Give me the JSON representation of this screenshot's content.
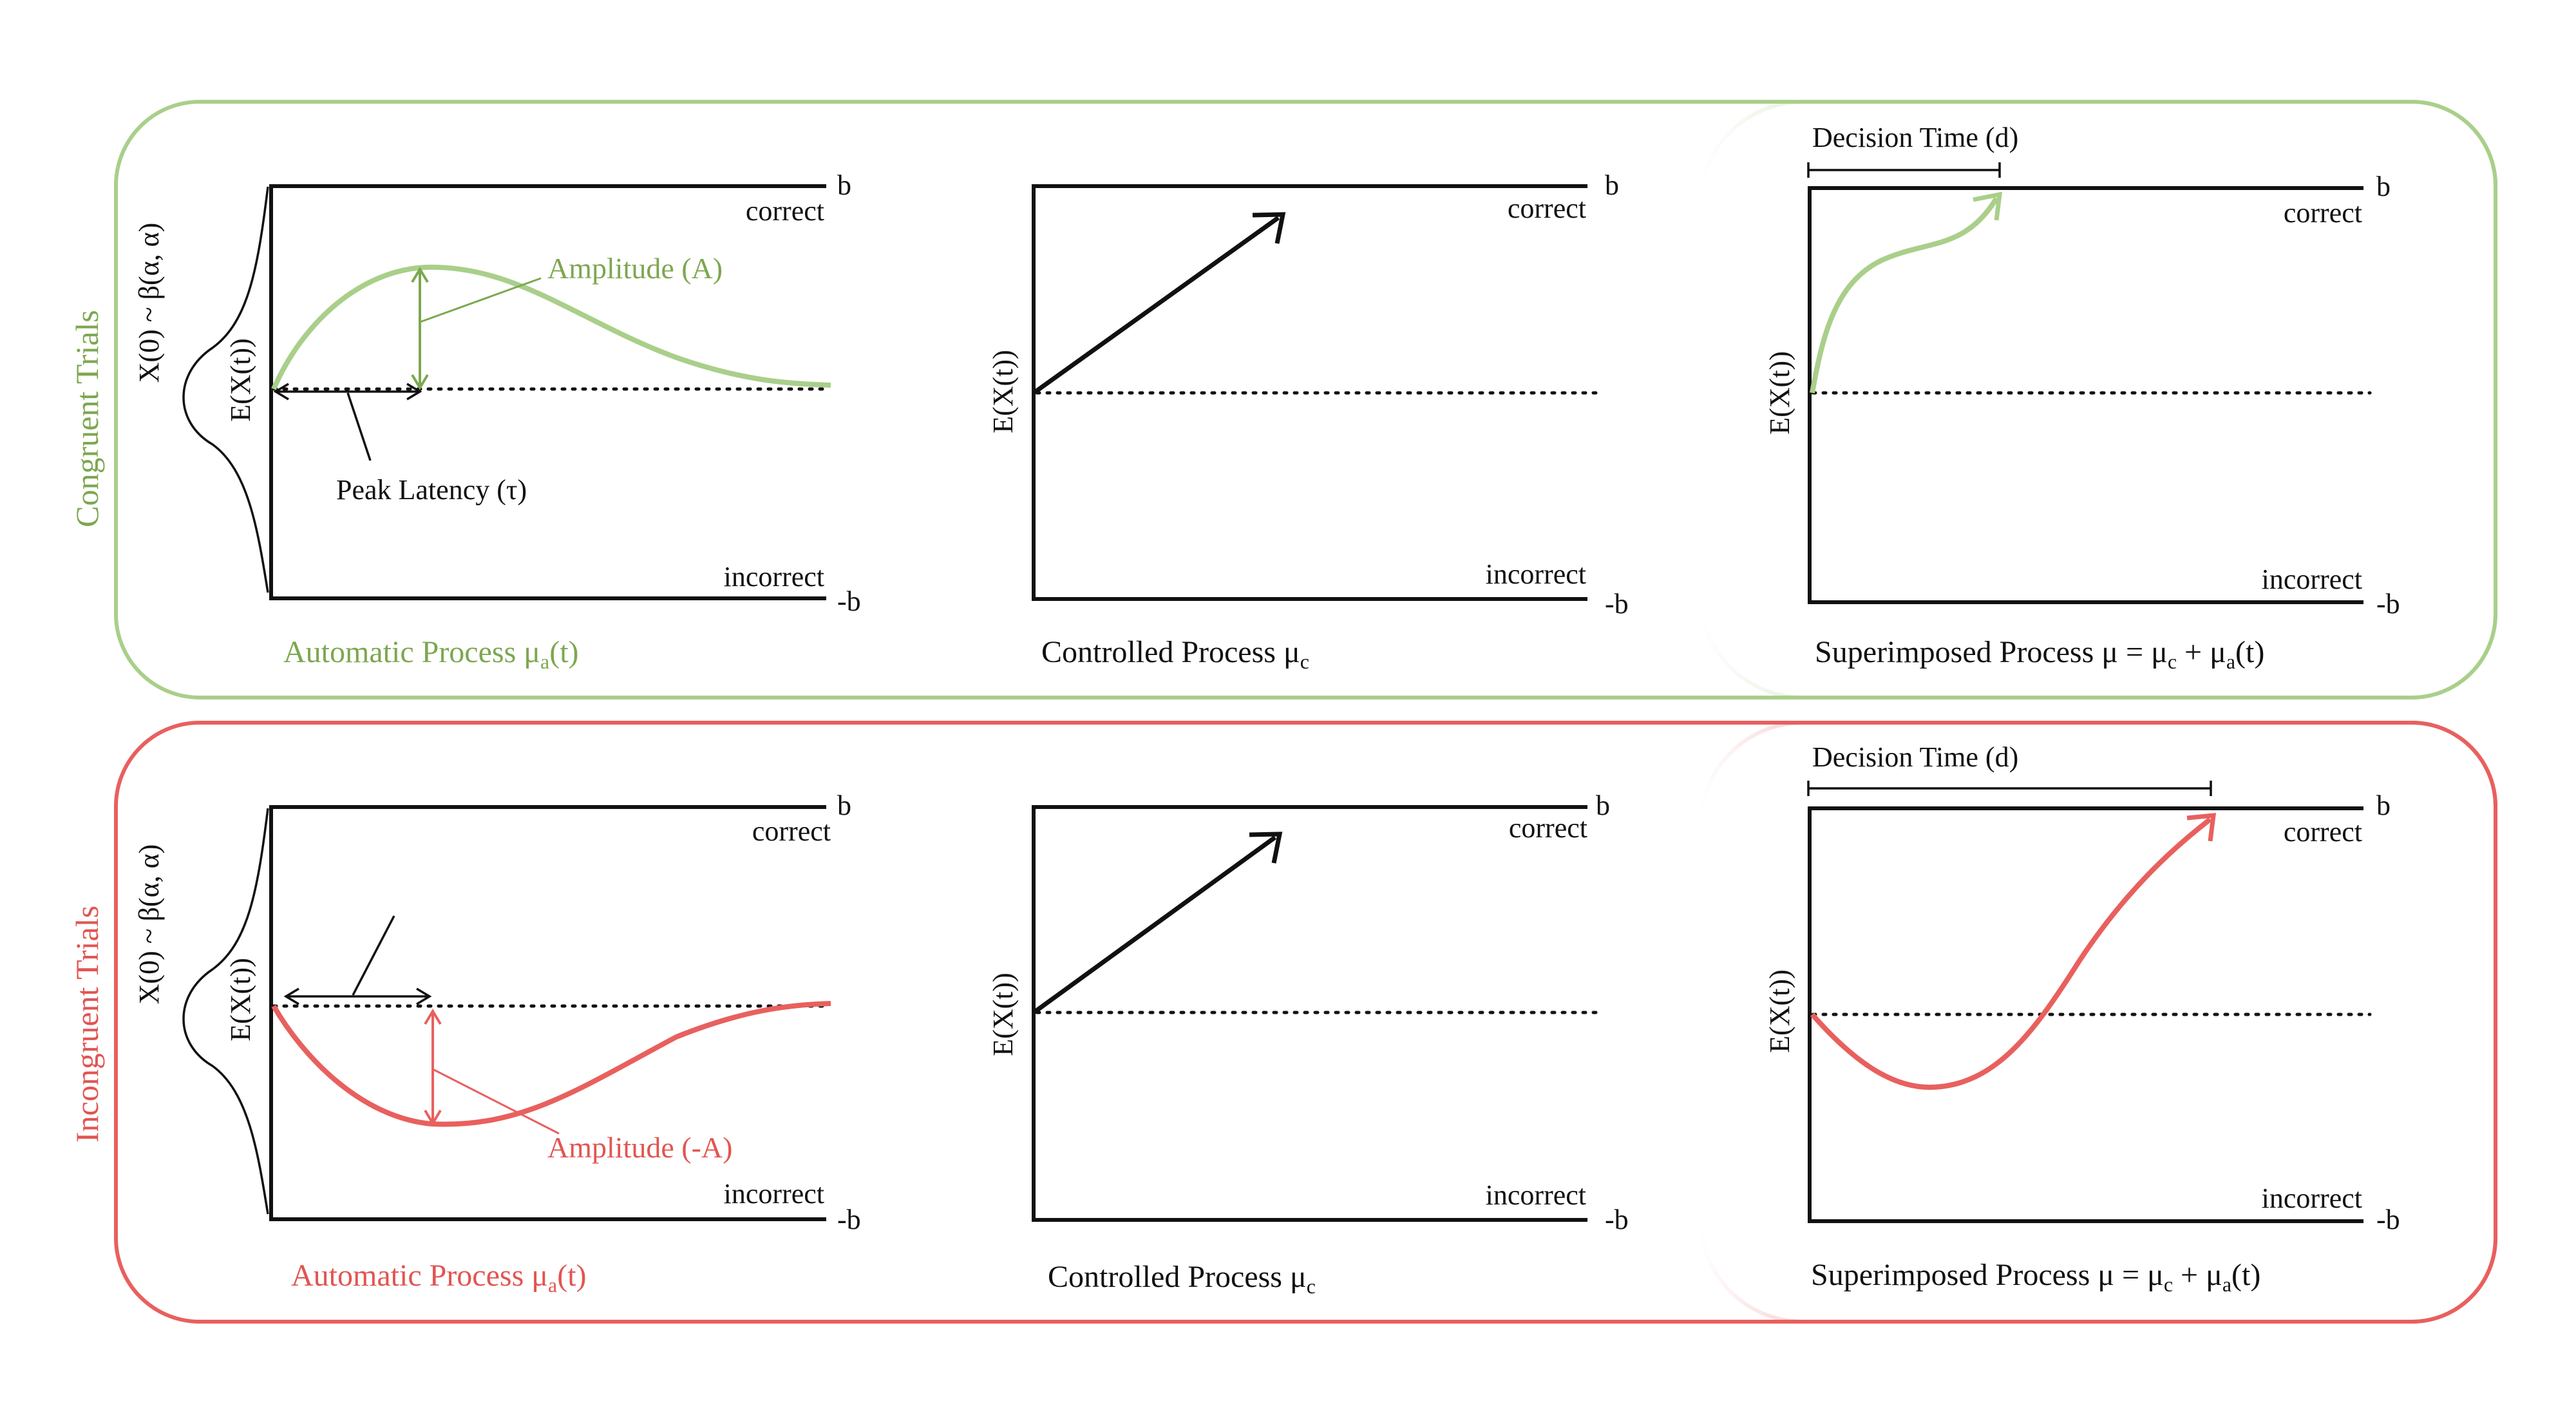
{
  "colors": {
    "congruent": "#a9cf8a",
    "congruent_text": "#7da750",
    "incongruent": "#e8605e",
    "incongruent_text": "#e15552",
    "ink": "#111111"
  },
  "rows": [
    {
      "id": "congruent",
      "row_label": "Congruent Trials",
      "prior_label": "X(0) ~ β(α, α)",
      "panels": [
        {
          "id": "automatic",
          "upper_bound": "b",
          "upper_label": "correct",
          "lower_bound": "-b",
          "lower_label": "incorrect",
          "y_label": "E(X(t))",
          "amplitude_label": "Amplitude (A)",
          "latency_label": "Peak Latency (τ)",
          "caption": {
            "main": "Automatic Process μ",
            "sub": "a",
            "tail": "(t)"
          }
        },
        {
          "id": "controlled",
          "upper_bound": "b",
          "upper_label": "correct",
          "lower_bound": "-b",
          "lower_label": "incorrect",
          "y_label": "E(X(t))",
          "caption": {
            "main": "Controlled Process μ",
            "sub": "c",
            "tail": ""
          }
        },
        {
          "id": "superimposed",
          "upper_bound": "b",
          "upper_label": "correct",
          "lower_bound": "-b",
          "lower_label": "incorrect",
          "y_label": "E(X(t))",
          "decision_label": "Decision Time (d)",
          "caption": {
            "main": "Superimposed Process μ = μ",
            "sub": "c",
            "mid": " + μ",
            "sub2": "a",
            "tail": "(t)"
          }
        }
      ]
    },
    {
      "id": "incongruent",
      "row_label": "Incongruent Trials",
      "prior_label": "X(0) ~ β(α, α)",
      "panels": [
        {
          "id": "automatic",
          "upper_bound": "b",
          "upper_label": "correct",
          "lower_bound": "-b",
          "lower_label": "incorrect",
          "y_label": "E(X(t))",
          "amplitude_label": "Amplitude (-A)",
          "caption": {
            "main": "Automatic Process μ",
            "sub": "a",
            "tail": "(t)"
          }
        },
        {
          "id": "controlled",
          "upper_bound": "b",
          "upper_label": "correct",
          "lower_bound": "-b",
          "lower_label": "incorrect",
          "y_label": "E(X(t))",
          "caption": {
            "main": "Controlled Process μ",
            "sub": "c",
            "tail": ""
          }
        },
        {
          "id": "superimposed",
          "upper_bound": "b",
          "upper_label": "correct",
          "lower_bound": "-b",
          "lower_label": "incorrect",
          "y_label": "E(X(t))",
          "decision_label": "Decision Time (d)",
          "caption": {
            "main": "Superimposed Process μ = μ",
            "sub": "c",
            "mid": " + μ",
            "sub2": "a",
            "tail": "(t)"
          }
        }
      ]
    }
  ]
}
